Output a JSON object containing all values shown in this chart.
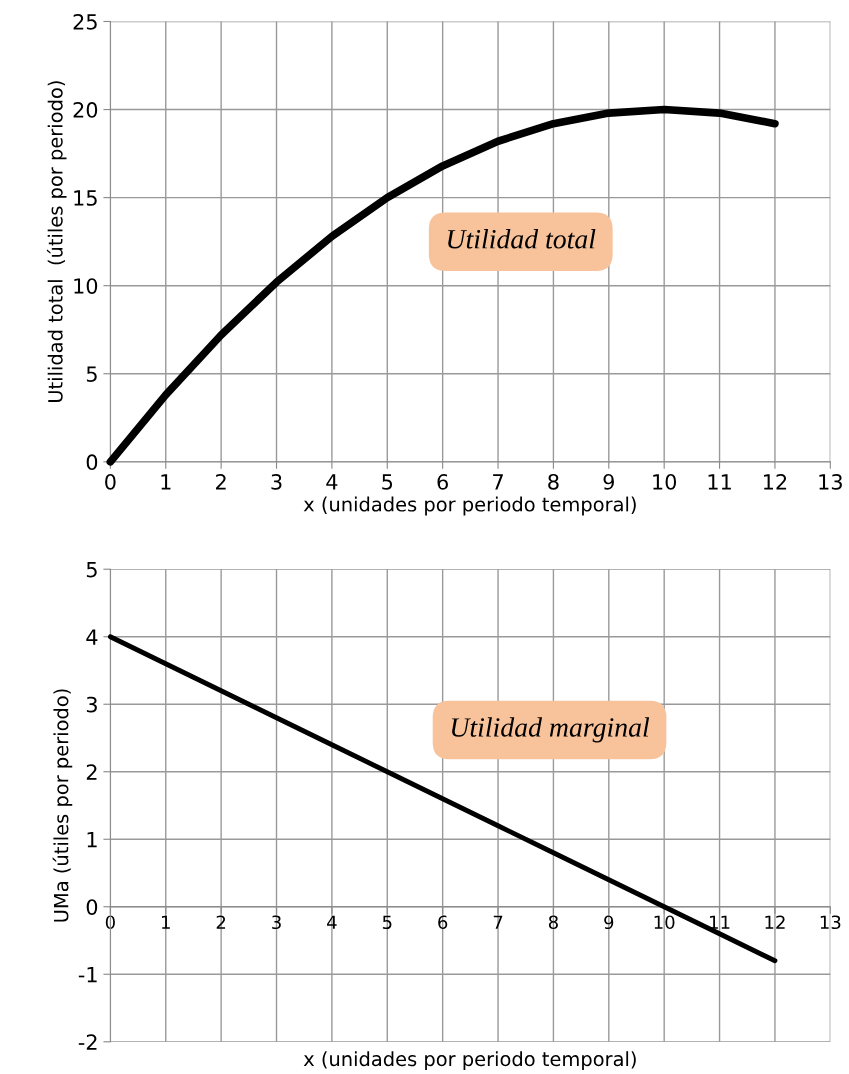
{
  "chart_data": [
    {
      "type": "line",
      "xlabel": "x (unidades por periodo temporal)",
      "ylabel": "Utilidad total  (útiles por periodo)",
      "x": [
        0,
        1,
        2,
        3,
        4,
        5,
        6,
        7,
        8,
        9,
        10,
        11,
        12
      ],
      "series": [
        {
          "color": "#000000",
          "values": [
            0,
            3.8,
            7.2,
            10.2,
            12.8,
            15,
            16.8,
            18.2,
            19.2,
            19.8,
            20,
            19.8,
            19.2
          ]
        }
      ],
      "xlim": [
        0,
        13
      ],
      "xticks": [
        0,
        1,
        2,
        3,
        4,
        5,
        6,
        7,
        8,
        9,
        10,
        11,
        12,
        13
      ],
      "ylim": [
        0,
        25
      ],
      "yticks": [
        0,
        5,
        10,
        15,
        20,
        25
      ],
      "grid": true,
      "marker": "none",
      "line_style": "solid",
      "annotations": [
        "Utilidad total"
      ]
    },
    {
      "type": "line",
      "xlabel": "x (unidades por periodo temporal)",
      "ylabel": "UMa (útiles por periodo)",
      "x": [
        0,
        1,
        2,
        3,
        4,
        5,
        6,
        7,
        8,
        9,
        10,
        11,
        12
      ],
      "series": [
        {
          "color": "#000000",
          "values": [
            4,
            3.6,
            3.2,
            2.8,
            2.4,
            2.0,
            1.6,
            1.2,
            0.8,
            0.4,
            0,
            -0.4,
            -0.8
          ]
        }
      ],
      "xlim": [
        0,
        13
      ],
      "xticks": [
        0,
        1,
        2,
        3,
        4,
        5,
        6,
        7,
        8,
        9,
        10,
        11,
        12,
        13
      ],
      "ylim": [
        -2,
        5
      ],
      "yticks": [
        -2,
        -1,
        0,
        1,
        2,
        3,
        4,
        5
      ],
      "grid": true,
      "marker": "none",
      "line_style": "solid",
      "annotations": [
        "Utilidad marginal"
      ]
    }
  ]
}
